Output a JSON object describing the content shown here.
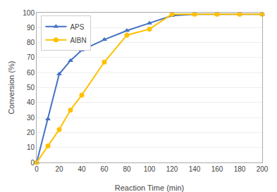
{
  "chart_data": {
    "type": "line",
    "x": [
      0,
      10,
      20,
      30,
      40,
      60,
      80,
      100,
      120,
      140,
      160,
      180,
      200
    ],
    "series": [
      {
        "name": "APS",
        "color": "#4472C4",
        "marker": "triangle-up",
        "values": [
          0,
          29,
          59,
          68,
          75,
          82,
          88,
          93,
          98,
          99,
          99,
          99,
          99
        ]
      },
      {
        "name": "AIBN",
        "color": "#FFC000",
        "marker": "circle",
        "values": [
          0,
          11,
          22,
          35,
          45,
          67,
          85,
          89,
          99,
          99,
          99,
          99,
          99
        ]
      }
    ],
    "xlabel": "Reaction Time (min)",
    "ylabel": "Conversion (%)",
    "xlim": [
      0,
      200
    ],
    "ylim": [
      0,
      100
    ],
    "xticks": [
      0,
      20,
      40,
      60,
      80,
      100,
      120,
      140,
      160,
      180,
      200
    ],
    "yticks": [
      0,
      10,
      20,
      30,
      40,
      50,
      60,
      70,
      80,
      90,
      100
    ],
    "grid": "y",
    "legend": "upper left"
  }
}
